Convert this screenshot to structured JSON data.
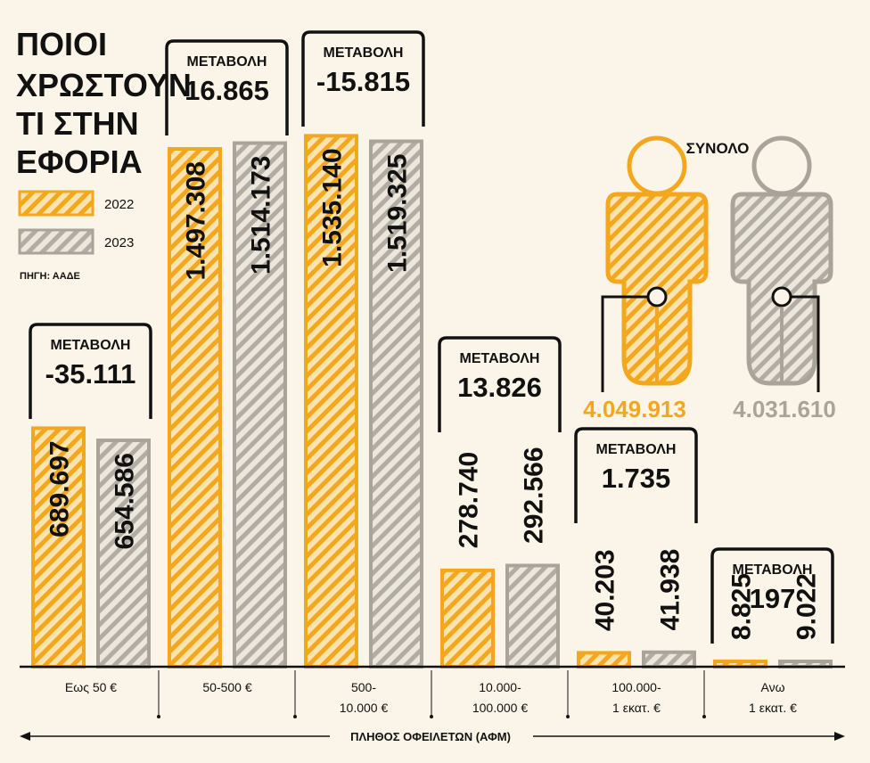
{
  "title_lines": [
    "ΠΟΙΟΙ",
    "ΧΡΩΣΤΟΥΝ",
    "ΤΙ ΣΤΗΝ",
    "ΕΦΟΡΙΑ"
  ],
  "source": "ΠΗΓΗ: ΑΑΔΕ",
  "colors": {
    "y2022": "#f3a71c",
    "y2023": "#a9a39a",
    "background": "#faf5e8",
    "ink": "#111111"
  },
  "totals": {
    "label": "ΣΥΝΟΛΟ",
    "y2022": {
      "display": "4.049.913",
      "value": 4049913
    },
    "y2023": {
      "display": "4.031.610",
      "value": 4031610
    }
  },
  "chart_data": {
    "type": "bar",
    "title": "ΠΟΙΟΙ ΧΡΩΣΤΟΥΝ ΤΙ ΣΤΗΝ ΕΦΟΡΙΑ",
    "xlabel": "ΠΛΗΘΟΣ ΟΦΕΙΛΕΤΩΝ (ΑΦΜ)",
    "ylabel": "",
    "categories": [
      [
        "Εως 50 €"
      ],
      [
        "50-500 €"
      ],
      [
        "500-",
        "10.000 €"
      ],
      [
        "10.000-",
        "100.000 €"
      ],
      [
        "100.000-",
        "1 εκατ. €"
      ],
      [
        "Ανω",
        "1 εκατ. €"
      ]
    ],
    "series": [
      {
        "name": "2022",
        "values": [
          689697,
          1497308,
          1535140,
          278740,
          40203,
          8825
        ],
        "labels": [
          "689.697",
          "1.497.308",
          "1.535.140",
          "278.740",
          "40.203",
          "8.825"
        ]
      },
      {
        "name": "2023",
        "values": [
          654586,
          1514173,
          1519325,
          292566,
          41938,
          9022
        ],
        "labels": [
          "654.586",
          "1.514.173",
          "1.519.325",
          "292.566",
          "41.938",
          "9.022"
        ]
      }
    ],
    "change_label": "ΜΕΤΑΒΟΛΗ",
    "changes": [
      "-35.111",
      "16.865",
      "-15.815",
      "13.826",
      "1.735",
      "197"
    ],
    "legend": "left",
    "grid": false
  }
}
